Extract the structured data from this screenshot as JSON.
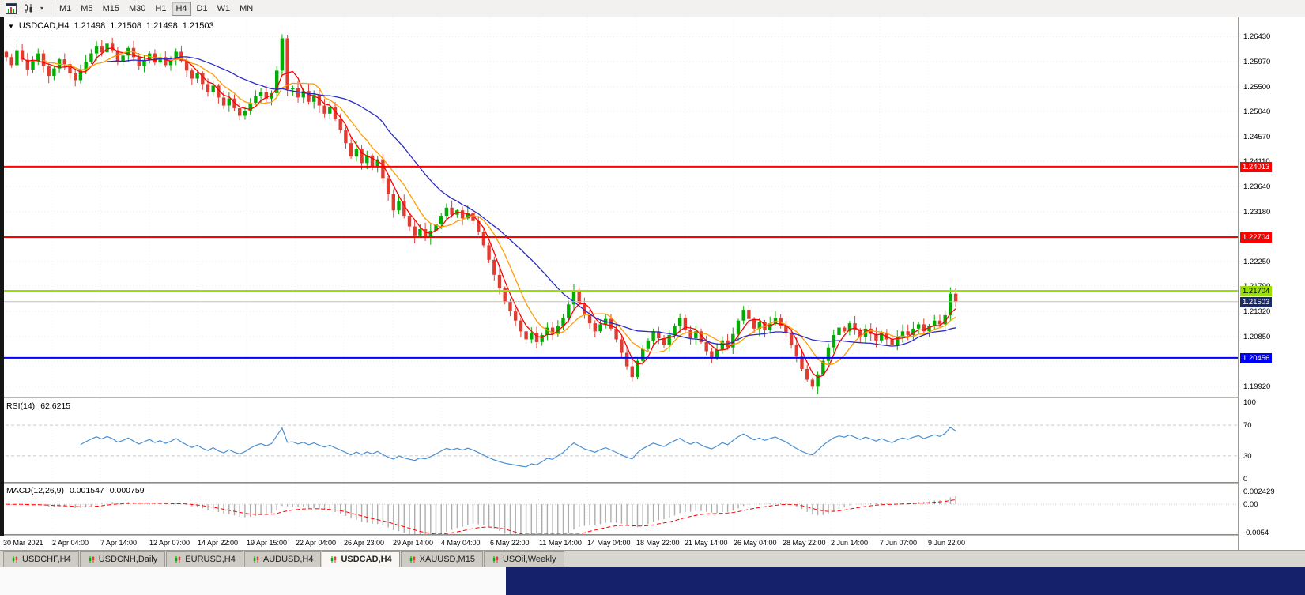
{
  "toolbar": {
    "timeframes": [
      "M1",
      "M5",
      "M15",
      "M30",
      "H1",
      "H4",
      "D1",
      "W1",
      "MN"
    ],
    "active_timeframe": "H4"
  },
  "chart_header": {
    "symbol": "USDCAD,H4",
    "open": "1.21498",
    "high": "1.21508",
    "low": "1.21498",
    "close": "1.21503"
  },
  "colors": {
    "up": "#00AD00",
    "down": "#E03C32",
    "ma_fast": "#FF0000",
    "ma_mid": "#FF9D00",
    "ma_slow": "#2B2BC4",
    "rsi_line": "#4A90D2",
    "macd_hist": "#ADADAD",
    "macd_signal": "#FF0000",
    "bid_line": "#C0C0C0",
    "current_badge": "#1C2A66"
  },
  "chart_data": {
    "type": "candlestick",
    "symbol": "USDCAD",
    "period": "H4",
    "first_open": 1.2615,
    "closes": [
      1.2605,
      1.259,
      1.2618,
      1.26,
      1.2582,
      1.2598,
      1.2612,
      1.2588,
      1.257,
      1.2584,
      1.2601,
      1.2592,
      1.2575,
      1.2562,
      1.258,
      1.2596,
      1.2612,
      1.2626,
      1.2614,
      1.263,
      1.2618,
      1.2598,
      1.2608,
      1.2622,
      1.2605,
      1.2588,
      1.26,
      1.2612,
      1.2595,
      1.2605,
      1.259,
      1.26,
      1.2615,
      1.2598,
      1.258,
      1.2565,
      1.2575,
      1.2555,
      1.254,
      1.2552,
      1.253,
      1.2515,
      1.2528,
      1.251,
      1.2496,
      1.2505,
      1.252,
      1.2532,
      1.254,
      1.2528,
      1.2538,
      1.258,
      1.264,
      1.2545,
      1.2548,
      1.253,
      1.2542,
      1.2522,
      1.2535,
      1.2515,
      1.25,
      1.2512,
      1.249,
      1.247,
      1.2445,
      1.242,
      1.2435,
      1.2408,
      1.2422,
      1.2402,
      1.2415,
      1.238,
      1.235,
      1.232,
      1.2338,
      1.231,
      1.229,
      1.2272,
      1.2285,
      1.227,
      1.2282,
      1.2295,
      1.231,
      1.2325,
      1.2312,
      1.232,
      1.2305,
      1.2315,
      1.23,
      1.228,
      1.2255,
      1.2228,
      1.22,
      1.2175,
      1.215,
      1.2132,
      1.2115,
      1.2095,
      1.208,
      1.2092,
      1.2075,
      1.2088,
      1.2102,
      1.209,
      1.2105,
      1.212,
      1.2145,
      1.217,
      1.2148,
      1.2125,
      1.211,
      1.2095,
      1.2108,
      1.2118,
      1.21,
      1.208,
      1.2055,
      1.203,
      1.201,
      1.204,
      1.2062,
      1.2078,
      1.2095,
      1.2082,
      1.207,
      1.2088,
      1.2105,
      1.212,
      1.2098,
      1.2082,
      1.2095,
      1.2075,
      1.2058,
      1.2045,
      1.206,
      1.2078,
      1.2065,
      1.209,
      1.2115,
      1.2135,
      1.2118,
      1.21,
      1.2112,
      1.2098,
      1.211,
      1.212,
      1.2105,
      1.2092,
      1.207,
      1.2048,
      1.2025,
      1.2005,
      1.1992,
      1.2015,
      1.204,
      1.2065,
      1.2088,
      1.2102,
      1.2095,
      1.211,
      1.2098,
      1.2085,
      1.21,
      1.209,
      1.2078,
      1.2092,
      1.208,
      1.207,
      1.2085,
      1.2095,
      1.2088,
      1.21,
      1.2108,
      1.2095,
      1.2105,
      1.2115,
      1.2108,
      1.2125,
      1.2165,
      1.21503
    ],
    "price_axis_labels": [
      "1.26430",
      "1.25970",
      "1.25500",
      "1.25040",
      "1.24570",
      "1.24110",
      "1.23640",
      "1.23180",
      "1.22710",
      "1.22250",
      "1.21790",
      "1.21320",
      "1.20850",
      "1.20390",
      "1.19920"
    ],
    "hlines": [
      {
        "label": "1.24013",
        "value": 1.24013,
        "color": "#FF0000",
        "text_color": "#FFFFFF"
      },
      {
        "label": "1.22704",
        "value": 1.22704,
        "color": "#FF0000",
        "text_color": "#FFFFFF"
      },
      {
        "label": "1.21704",
        "value": 1.21704,
        "color": "#97E000",
        "text_color": "#000000"
      },
      {
        "label": "1.20456",
        "value": 1.20456,
        "color": "#0000FF",
        "text_color": "#FFFFFF"
      }
    ],
    "current_price": {
      "label": "1.21503",
      "value": 1.21503
    },
    "time_axis_labels": [
      "30 Mar 2021",
      "2 Apr 04:00",
      "7 Apr 14:00",
      "12 Apr 07:00",
      "14 Apr 22:00",
      "19 Apr 15:00",
      "22 Apr 04:00",
      "26 Apr 23:00",
      "29 Apr 14:00",
      "4 May 04:00",
      "6 May 22:00",
      "11 May 14:00",
      "14 May 04:00",
      "18 May 22:00",
      "21 May 14:00",
      "26 May 04:00",
      "28 May 22:00",
      "2 Jun 14:00",
      "7 Jun 07:00",
      "9 Jun 22:00"
    ]
  },
  "rsi": {
    "label": "RSI(14)",
    "value": "62.6215",
    "axis_labels": [
      "100",
      "70",
      "30",
      "0"
    ],
    "axis_values": [
      100,
      70,
      30,
      0
    ],
    "level_lines": [
      70,
      30
    ]
  },
  "macd": {
    "label": "MACD(12,26,9)",
    "value_main": "0.001547",
    "value_signal": "0.000759",
    "axis_labels": [
      "0.002429",
      "0.00",
      "-0.0054"
    ],
    "axis_values": [
      0.002429,
      0,
      -0.0054
    ]
  },
  "tabs": [
    {
      "label": "USDCHF,H4",
      "active": false
    },
    {
      "label": "USDCNH,Daily",
      "active": false
    },
    {
      "label": "EURUSD,H4",
      "active": false
    },
    {
      "label": "AUDUSD,H4",
      "active": false
    },
    {
      "label": "USDCAD,H4",
      "active": true
    },
    {
      "label": "XAUUSD,M15",
      "active": false
    },
    {
      "label": "USOil,Weekly",
      "active": false
    }
  ]
}
